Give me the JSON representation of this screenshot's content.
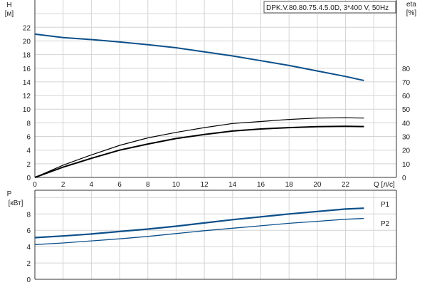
{
  "chart_data": [
    {
      "type": "line",
      "title": "DPK.V.80.80.75.4.5.0D, 3*400 V, 50Hz",
      "xlabel": "Q [л/с]",
      "ylabel": "H",
      "ylabel_unit": "[м]",
      "y2label": "eta",
      "y2label_unit": "[%]",
      "xlim": [
        0,
        25.6
      ],
      "ylim": [
        0,
        26
      ],
      "y2lim": [
        0,
        130
      ],
      "xticks": [
        0,
        2,
        4,
        6,
        8,
        10,
        12,
        14,
        16,
        18,
        20,
        22
      ],
      "yticks": [
        0,
        2,
        4,
        6,
        8,
        10,
        12,
        14,
        16,
        18,
        20,
        22
      ],
      "y2ticks": [
        0,
        10,
        20,
        30,
        40,
        50,
        60,
        70,
        80
      ],
      "grid": true,
      "colors": {
        "head": "#0b4f8a",
        "eta": "#000000"
      },
      "x": [
        0,
        2,
        4,
        6,
        8,
        10,
        12,
        14,
        16,
        18,
        20,
        22,
        23.3
      ],
      "series": [
        {
          "axis": "H",
          "color": "#0b4f8a",
          "values": [
            21.0,
            20.5,
            20.2,
            19.85,
            19.45,
            19.0,
            18.4,
            17.8,
            17.1,
            16.4,
            15.6,
            14.8,
            14.2
          ]
        },
        {
          "axis": "eta",
          "color": "#000000",
          "values": [
            0,
            9,
            16.5,
            23.5,
            29,
            33,
            36.5,
            39.5,
            41,
            42.5,
            43.5,
            43.7,
            43.5
          ]
        },
        {
          "axis": "eta",
          "color": "#000000",
          "values": [
            0,
            7.5,
            14,
            20,
            24.5,
            28.5,
            31.5,
            34,
            35.5,
            36.5,
            37.2,
            37.5,
            37.3
          ]
        }
      ]
    },
    {
      "type": "line",
      "ylabel": "P",
      "ylabel_unit": "[кВт]",
      "xlim": [
        0,
        25.6
      ],
      "ylim": [
        0,
        10.9
      ],
      "yticks": [
        0,
        2,
        4,
        6,
        8
      ],
      "grid": true,
      "x": [
        0,
        2,
        4,
        6,
        8,
        10,
        12,
        14,
        16,
        18,
        20,
        22,
        23.3
      ],
      "series": [
        {
          "name": "P1",
          "color": "#0b4f8a",
          "values": [
            5.1,
            5.3,
            5.55,
            5.85,
            6.15,
            6.5,
            6.9,
            7.3,
            7.65,
            8.0,
            8.3,
            8.6,
            8.7
          ]
        },
        {
          "name": "P2",
          "color": "#0b4f8a",
          "values": [
            4.25,
            4.45,
            4.7,
            4.95,
            5.25,
            5.6,
            5.95,
            6.25,
            6.55,
            6.85,
            7.1,
            7.35,
            7.45
          ]
        }
      ]
    }
  ]
}
